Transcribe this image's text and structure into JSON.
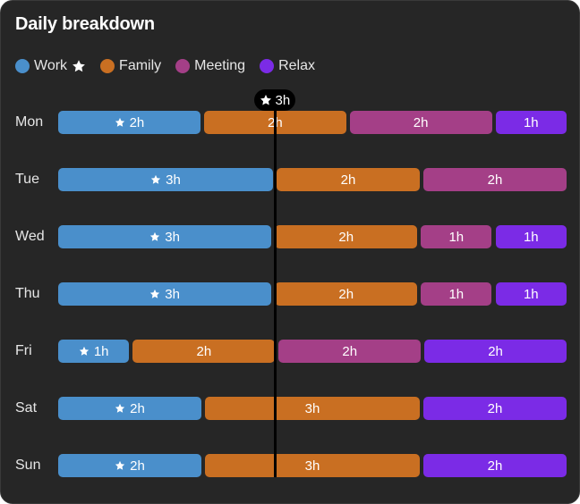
{
  "title": "Daily breakdown",
  "legend": [
    {
      "label": "Work",
      "color": "#4a8fcb",
      "starred": true
    },
    {
      "label": "Family",
      "color": "#c96f22"
    },
    {
      "label": "Meeting",
      "color": "#a43f87"
    },
    {
      "label": "Relax",
      "color": "#7b2be6"
    }
  ],
  "rule": {
    "label": "3h",
    "value": 3,
    "icon": "star-icon"
  },
  "chart_data": {
    "type": "bar",
    "stacked": true,
    "orientation": "horizontal",
    "value_unit": "h",
    "categories": [
      "Mon",
      "Tue",
      "Wed",
      "Thu",
      "Fri",
      "Sat",
      "Sun"
    ],
    "series": [
      {
        "name": "Work",
        "values": [
          2,
          3,
          3,
          3,
          1,
          2,
          2
        ],
        "color": "#4a8fcb"
      },
      {
        "name": "Family",
        "values": [
          2,
          2,
          2,
          2,
          2,
          3,
          3
        ],
        "color": "#c96f22"
      },
      {
        "name": "Meeting",
        "values": [
          2,
          2,
          1,
          1,
          2,
          0,
          0
        ],
        "color": "#a43f87"
      },
      {
        "name": "Relax",
        "values": [
          1,
          0,
          1,
          1,
          2,
          2,
          2
        ],
        "color": "#7b2be6"
      }
    ],
    "data_labels": [
      [
        "2h",
        "2h",
        "2h",
        "1h"
      ],
      [
        "3h",
        "2h",
        "2h",
        ""
      ],
      [
        "3h",
        "2h",
        "1h",
        "1h"
      ],
      [
        "3h",
        "2h",
        "1h",
        "1h"
      ],
      [
        "1h",
        "2h",
        "2h",
        "2h"
      ],
      [
        "2h",
        "3h",
        "",
        "2h"
      ],
      [
        "2h",
        "3h",
        "",
        "2h"
      ]
    ],
    "starred_series": "Work",
    "reference_line": {
      "value": 3,
      "label": "3h"
    },
    "xlabel": "",
    "ylabel": ""
  }
}
